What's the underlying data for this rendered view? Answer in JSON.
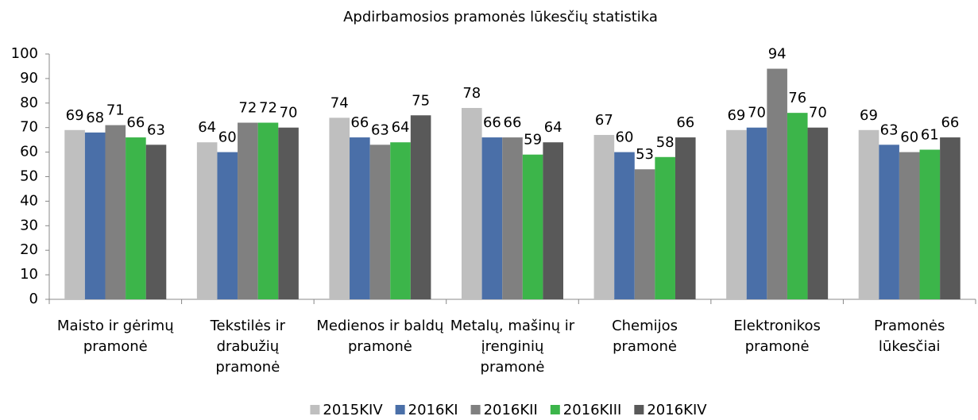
{
  "chart_data": {
    "type": "bar",
    "title": "Apdirbamosios pramonės lūkesčių statistika",
    "categories": [
      "Maisto ir gėrimų pramonė",
      "Tekstilės ir drabužių pramonė",
      "Medienos ir baldų pramonė",
      "Metalų, mašinų ir įrenginių pramonė",
      "Chemijos pramonė",
      "Elektronikos pramonė",
      "Pramonės lūkesčiai"
    ],
    "series": [
      {
        "name": "2015KIV",
        "color": "#bfbfbf",
        "values": [
          69,
          64,
          74,
          78,
          67,
          69,
          69
        ]
      },
      {
        "name": "2016KI",
        "color": "#4a6fa8",
        "values": [
          68,
          60,
          66,
          66,
          60,
          70,
          63
        ]
      },
      {
        "name": "2016KII",
        "color": "#808080",
        "values": [
          71,
          72,
          63,
          66,
          53,
          94,
          60
        ]
      },
      {
        "name": "2016KIII",
        "color": "#3cb54a",
        "values": [
          66,
          72,
          64,
          59,
          58,
          76,
          61
        ]
      },
      {
        "name": "2016KIV",
        "color": "#595959",
        "values": [
          63,
          70,
          75,
          64,
          66,
          70,
          66
        ]
      }
    ],
    "ylim": [
      0,
      100
    ],
    "yticks": [
      0,
      10,
      20,
      30,
      40,
      50,
      60,
      70,
      80,
      90,
      100
    ],
    "grid": false,
    "legend": "bottom"
  }
}
